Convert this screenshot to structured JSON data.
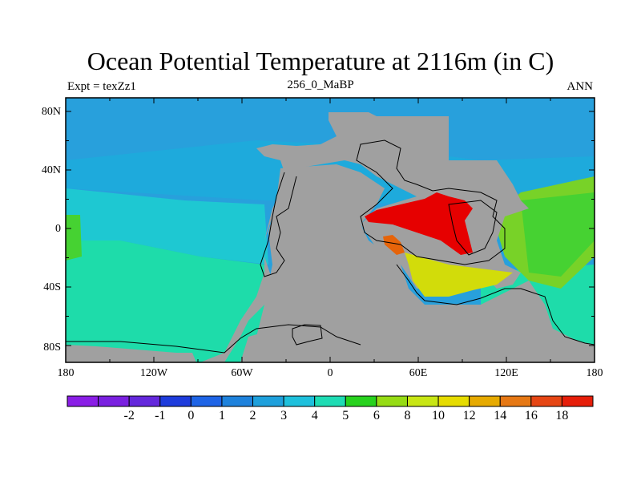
{
  "title": "Ocean Potential Temperature at 2116m (in C)",
  "subtitle_left": "Expt = texZz1",
  "subtitle_center": "256_0_MaBP",
  "subtitle_right": "ANN",
  "lat_labels": [
    "80N",
    "40N",
    "0",
    "40S",
    "80S"
  ],
  "lon_labels": [
    "180",
    "120W",
    "60W",
    "0",
    "60E",
    "120E",
    "180"
  ],
  "colorbar": {
    "colors": [
      "#8a1ee6",
      "#7a20e0",
      "#6428dc",
      "#1e3cdc",
      "#1e64e6",
      "#1e82dc",
      "#1ea0dc",
      "#1ec0dc",
      "#1edcb4",
      "#28d21e",
      "#96dc14",
      "#c8e614",
      "#e6dc00",
      "#e6aa00",
      "#e67814",
      "#e64614",
      "#e61e0a"
    ],
    "labels": [
      "-2",
      "-1",
      "0",
      "1",
      "2",
      "3",
      "4",
      "5",
      "6",
      "8",
      "10",
      "12",
      "14",
      "16",
      "18"
    ]
  },
  "map_colors": {
    "land": "#a0a0a0",
    "arctic": "#28a0dc",
    "north_ocean": "#1eaadc",
    "tropical_west": "#1ec8d2",
    "south_west": "#1edcaa",
    "east_warm": "#78d228",
    "east_green": "#46d232",
    "hot": "#e60000",
    "orange": "#e6640a",
    "yellow": "#d2dc0a"
  }
}
